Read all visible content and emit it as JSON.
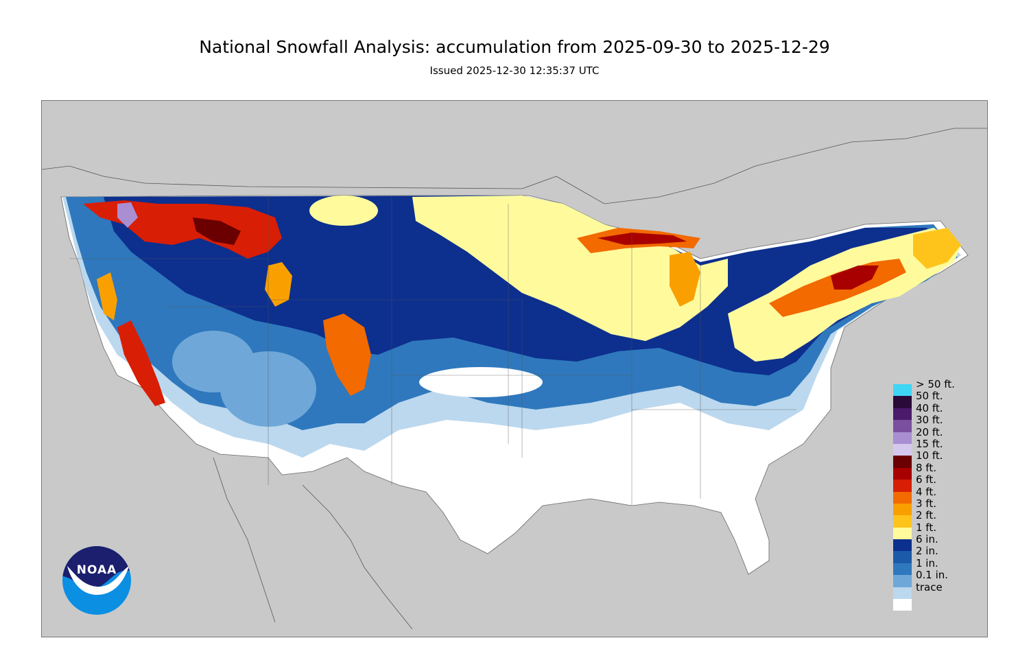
{
  "title": "National Snowfall Analysis: accumulation from 2025-09-30 to 2025-12-29",
  "subtitle": "Issued 2025-12-30 12:35:37 UTC",
  "colors": {
    "background": "#ffffff",
    "ocean_land_outside": "#c9c9c9",
    "border_lines": "#555555"
  },
  "legend": {
    "placement": "bottom-right",
    "items": [
      {
        "label": "> 50 ft.",
        "color": "#3fd6f5"
      },
      {
        "label": "50 ft.",
        "color": "#2a0a38"
      },
      {
        "label": "40 ft.",
        "color": "#4b1a6b"
      },
      {
        "label": "30 ft.",
        "color": "#7b4fa0"
      },
      {
        "label": "20 ft.",
        "color": "#a98ed2"
      },
      {
        "label": "15 ft.",
        "color": "#d4c8ef"
      },
      {
        "label": "10 ft.",
        "color": "#6b0000"
      },
      {
        "label": "8 ft.",
        "color": "#a80000"
      },
      {
        "label": "6 ft.",
        "color": "#d81e05"
      },
      {
        "label": "4 ft.",
        "color": "#f26a00"
      },
      {
        "label": "3 ft.",
        "color": "#f9a000"
      },
      {
        "label": "2 ft.",
        "color": "#ffc41c"
      },
      {
        "label": "1 ft.",
        "color": "#fffb9d"
      },
      {
        "label": "6 in.",
        "color": "#0d2f8e"
      },
      {
        "label": "2 in.",
        "color": "#1a5aa8"
      },
      {
        "label": "1 in.",
        "color": "#2f78bd"
      },
      {
        "label": "0.1 in.",
        "color": "#6fa8d8"
      },
      {
        "label": "trace",
        "color": "#bcd8ee"
      },
      {
        "label": "",
        "color": "#ffffff"
      }
    ]
  },
  "logo": {
    "text": "NOAA",
    "colors": {
      "top": "#1b1f6e",
      "bottom": "#0a8fe3"
    }
  }
}
